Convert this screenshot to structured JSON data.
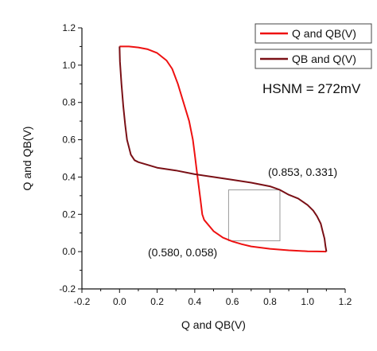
{
  "chart_data": {
    "type": "line",
    "title": "",
    "xlabel": "Q and QB(V)",
    "ylabel": "Q and QB(V)",
    "xlim": [
      -0.2,
      1.2
    ],
    "ylim": [
      -0.2,
      1.2
    ],
    "x_ticks": [
      "-0.2",
      "0.0",
      "0.2",
      "0.4",
      "0.6",
      "0.8",
      "1.0",
      "1.2"
    ],
    "y_ticks": [
      "-0.2",
      "0.0",
      "0.2",
      "0.4",
      "0.6",
      "0.8",
      "1.0",
      "1.2"
    ],
    "grid": false,
    "legend_position": "top-right",
    "series": [
      {
        "name": "Q and QB(V)",
        "color": "#ee1111",
        "x": [
          0.0,
          0.05,
          0.1,
          0.15,
          0.2,
          0.25,
          0.28,
          0.31,
          0.34,
          0.37,
          0.39,
          0.4,
          0.41,
          0.42,
          0.43,
          0.44,
          0.45,
          0.5,
          0.55,
          0.6,
          0.65,
          0.7,
          0.8,
          0.9,
          1.0,
          1.05,
          1.1
        ],
        "y": [
          1.1,
          1.1,
          1.095,
          1.085,
          1.065,
          1.025,
          0.98,
          0.9,
          0.8,
          0.7,
          0.6,
          0.52,
          0.44,
          0.36,
          0.28,
          0.2,
          0.17,
          0.11,
          0.075,
          0.055,
          0.04,
          0.028,
          0.015,
          0.007,
          0.002,
          0.001,
          0.0
        ]
      },
      {
        "name": "QB and Q(V)",
        "color": "#7a1016",
        "x": [
          0.0,
          0.002,
          0.01,
          0.02,
          0.03,
          0.04,
          0.05,
          0.06,
          0.08,
          0.1,
          0.15,
          0.2,
          0.3,
          0.4,
          0.5,
          0.6,
          0.7,
          0.8,
          0.853,
          0.9,
          0.95,
          1.0,
          1.03,
          1.05,
          1.07,
          1.08,
          1.09,
          1.095,
          1.1
        ],
        "y": [
          1.1,
          1.02,
          0.9,
          0.78,
          0.68,
          0.6,
          0.56,
          0.52,
          0.49,
          0.48,
          0.465,
          0.45,
          0.435,
          0.415,
          0.4,
          0.385,
          0.37,
          0.35,
          0.331,
          0.305,
          0.285,
          0.25,
          0.22,
          0.19,
          0.15,
          0.11,
          0.07,
          0.03,
          0.0
        ]
      }
    ],
    "annotations": [
      {
        "text": "(0.853, 0.331)",
        "x": 0.853,
        "y": 0.331
      },
      {
        "text": "(0.580, 0.058)",
        "x": 0.58,
        "y": 0.058
      },
      {
        "text": "HSNM = 272mV"
      }
    ],
    "noise_margin_box": {
      "x": [
        0.58,
        0.853
      ],
      "y": [
        0.058,
        0.331
      ]
    }
  }
}
